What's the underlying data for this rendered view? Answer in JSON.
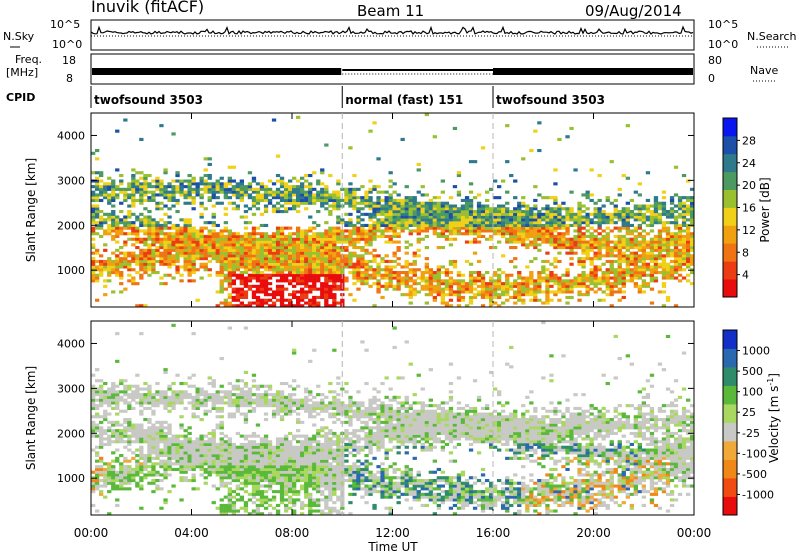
{
  "header": {
    "station": "Inuvik (fitACF)",
    "beam": "Beam 11",
    "date": "09/Aug/2014"
  },
  "sky_panel": {
    "left_label": "N.Sky",
    "left_ticks": [
      "10^5",
      "10^0"
    ],
    "right_ticks": [
      "10^5",
      "10^0"
    ],
    "right_label": "N.Search"
  },
  "freq_panel": {
    "left_label_1": "Freq.",
    "left_label_2": "[MHz]",
    "left_ticks": [
      "18",
      "8"
    ],
    "right_ticks": [
      "80",
      "0"
    ],
    "right_label": "Nave"
  },
  "cpid_panel": {
    "label": "CPID",
    "segments": [
      {
        "name": "twofsound 3503",
        "start_hour": 0,
        "end_hour": 10
      },
      {
        "name": "normal (fast) 151",
        "start_hour": 10,
        "end_hour": 16
      },
      {
        "name": "twofsound 3503",
        "start_hour": 16,
        "end_hour": 24
      }
    ]
  },
  "time_axis": {
    "label": "Time UT",
    "ticks": [
      "00:00",
      "04:00",
      "08:00",
      "12:00",
      "16:00",
      "20:00",
      "00:00"
    ]
  },
  "chart_data": [
    {
      "type": "heatmap",
      "quantity": "power",
      "xlabel": "Time UT",
      "ylabel": "Slant Range [km]",
      "xlim_hours": [
        0,
        24
      ],
      "ylim_km": [
        180,
        4500
      ],
      "yticks": [
        "1000",
        "2000",
        "3000",
        "4000"
      ],
      "colorbar": {
        "label": "Power [dB]",
        "ticks": [
          "4",
          "8",
          "12",
          "16",
          "20",
          "24",
          "28"
        ],
        "colors": [
          "#0a16f0",
          "#1c4fa8",
          "#2e7a8c",
          "#4c9a62",
          "#9ac030",
          "#f0d018",
          "#f0a010",
          "#f07414",
          "#ec3c12",
          "#e80c0c"
        ]
      }
    },
    {
      "type": "heatmap",
      "quantity": "velocity",
      "xlabel": "Time UT",
      "ylabel": "Slant Range [km]",
      "xlim_hours": [
        0,
        24
      ],
      "ylim_km": [
        180,
        4500
      ],
      "yticks": [
        "1000",
        "2000",
        "3000",
        "4000"
      ],
      "colorbar": {
        "label": "Velocity [m s",
        "label_sup": "-1",
        "label_end": "]",
        "ticks": [
          "1000",
          "500",
          "100",
          "25",
          "-25",
          "-100",
          "-500",
          "-1000"
        ],
        "colors": [
          "#1230c8",
          "#2a68b0",
          "#2f8c6a",
          "#5ab83a",
          "#a8d860",
          "#c8c8c4",
          "#f0a838",
          "#f08818",
          "#f04c12",
          "#e80c0c"
        ]
      }
    }
  ],
  "colors": {
    "gray_scatter": "#c8c8c4",
    "mode_boundary": "#b4b4b4"
  }
}
